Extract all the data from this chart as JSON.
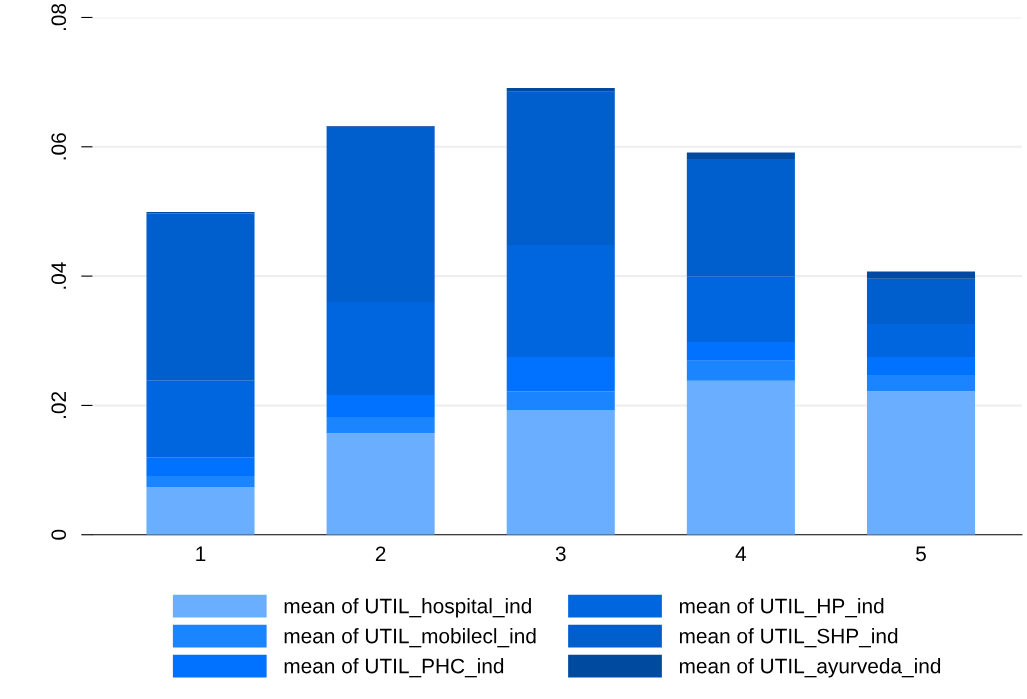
{
  "chart_data": {
    "type": "bar",
    "stacked": true,
    "categories": [
      "1",
      "2",
      "3",
      "4",
      "5"
    ],
    "series": [
      {
        "name": "mean of UTIL_hospital_ind",
        "color": "#6aaeff",
        "values": [
          0.0074,
          0.0157,
          0.0192,
          0.0238,
          0.0222
        ]
      },
      {
        "name": "mean of UTIL_mobilecl_ind",
        "color": "#1a85ff",
        "values": [
          0.0017,
          0.0025,
          0.003,
          0.0031,
          0.0025
        ]
      },
      {
        "name": "mean of UTIL_PHC_ind",
        "color": "#0072ff",
        "values": [
          0.0029,
          0.0034,
          0.0053,
          0.0029,
          0.0028
        ]
      },
      {
        "name": "mean of UTIL_HP_ind",
        "color": "#0066e0",
        "values": [
          0.0118,
          0.0144,
          0.0173,
          0.0101,
          0.0051
        ]
      },
      {
        "name": "mean of UTIL_SHP_ind",
        "color": "#005ecd",
        "values": [
          0.0259,
          0.0271,
          0.0237,
          0.0182,
          0.007
        ]
      },
      {
        "name": "mean of UTIL_ayurveda_ind",
        "color": "#004aa0",
        "values": [
          0.0002,
          0.0001,
          0.0006,
          0.001,
          0.0011
        ]
      }
    ],
    "ylim": [
      0,
      0.08
    ],
    "yticks": [
      {
        "value": 0,
        "label": "0"
      },
      {
        "value": 0.02,
        "label": ".02"
      },
      {
        "value": 0.04,
        "label": ".04"
      },
      {
        "value": 0.06,
        "label": ".06"
      },
      {
        "value": 0.08,
        "label": ".08"
      }
    ],
    "grid": "y",
    "legend": "bottom"
  }
}
